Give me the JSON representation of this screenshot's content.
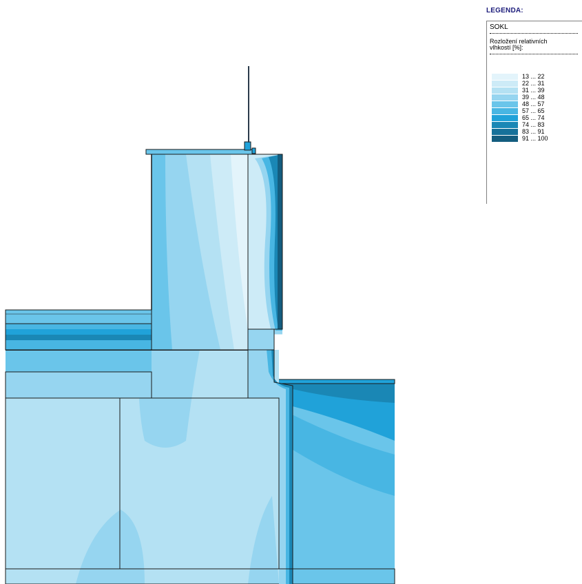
{
  "legend": {
    "heading": "LEGENDA:",
    "name": "SOKL",
    "description_line1": "Rozložení relativních",
    "description_line2": "vlhkostí [%]:",
    "ranges": [
      {
        "label": "13 ... 22",
        "color": "#e3f4fb"
      },
      {
        "label": "22 ... 31",
        "color": "#cdebf7"
      },
      {
        "label": "31 ... 39",
        "color": "#b4e1f3"
      },
      {
        "label": "39 ... 48",
        "color": "#96d5f0"
      },
      {
        "label": "48 ... 57",
        "color": "#6ac5ea"
      },
      {
        "label": "57 ... 65",
        "color": "#48b6e3"
      },
      {
        "label": "65 ... 74",
        "color": "#20a2d9"
      },
      {
        "label": "74 ... 83",
        "color": "#1a87b5"
      },
      {
        "label": "83 ... 91",
        "color": "#16719a"
      },
      {
        "label": "91 ... 100",
        "color": "#145d7f"
      }
    ]
  }
}
